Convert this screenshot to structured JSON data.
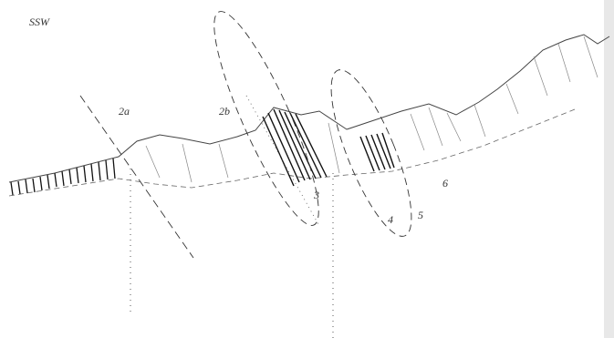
{
  "diagram": {
    "direction": "SSW",
    "labels": [
      "2a",
      "2b",
      "3",
      "4",
      "5",
      "6"
    ]
  }
}
